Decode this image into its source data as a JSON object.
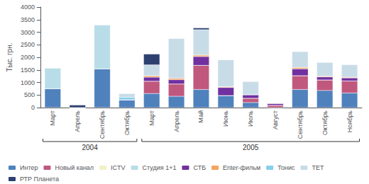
{
  "chart_data": {
    "type": "bar",
    "stacked": true,
    "categories": [
      "Март",
      "Апрель",
      "Сентябрь",
      "Октябрь",
      "Март",
      "Апрель",
      "Май",
      "Июнь",
      "Июль",
      "Август",
      "Сентябрь",
      "Октябрь",
      "Ноябрь"
    ],
    "series": [
      {
        "name": "Интер",
        "color": "#4f81bd",
        "values": [
          750,
          0,
          1540,
          310,
          560,
          450,
          720,
          480,
          200,
          0,
          720,
          680,
          580
        ]
      },
      {
        "name": "Новый канал",
        "color": "#c0587e",
        "values": [
          0,
          0,
          0,
          0,
          490,
          490,
          960,
          0,
          170,
          90,
          550,
          420,
          480
        ]
      },
      {
        "name": "ICTV",
        "color": "#f2f0c8",
        "values": [
          0,
          0,
          0,
          0,
          0,
          0,
          0,
          0,
          0,
          0,
          0,
          0,
          0
        ]
      },
      {
        "name": "Студия 1+1",
        "color": "#b8dde8",
        "values": [
          830,
          0,
          1760,
          0,
          0,
          0,
          0,
          0,
          0,
          0,
          0,
          0,
          0
        ]
      },
      {
        "name": "СТБ",
        "color": "#7030a0",
        "values": [
          0,
          0,
          0,
          0,
          160,
          170,
          350,
          320,
          140,
          80,
          270,
          120,
          120
        ]
      },
      {
        "name": "Enter-фильм",
        "color": "#f4a460",
        "values": [
          0,
          0,
          0,
          0,
          60,
          60,
          60,
          30,
          0,
          0,
          60,
          30,
          30
        ]
      },
      {
        "name": "Тонис",
        "color": "#87ceeb",
        "values": [
          0,
          0,
          0,
          100,
          0,
          0,
          0,
          0,
          0,
          0,
          0,
          0,
          0
        ]
      },
      {
        "name": "ТЕТ",
        "color": "#c8dce8",
        "values": [
          0,
          0,
          0,
          150,
          430,
          1580,
          1010,
          1070,
          530,
          0,
          630,
          550,
          500
        ]
      },
      {
        "name": "РТР Планета",
        "color": "#2e4070",
        "values": [
          0,
          100,
          0,
          0,
          430,
          0,
          70,
          0,
          0,
          0,
          0,
          0,
          0
        ]
      }
    ],
    "ylabel": "Тыс. грн.",
    "ylim": [
      0,
      4000
    ],
    "yticks": [
      0,
      500,
      1000,
      1500,
      2000,
      2500,
      3000,
      3500,
      4000
    ],
    "grid": false,
    "legend": "bottom",
    "annotations": [
      {
        "text": "2004",
        "start": 0,
        "end": 3
      },
      {
        "text": "2005",
        "start": 4,
        "end": 12
      }
    ]
  }
}
